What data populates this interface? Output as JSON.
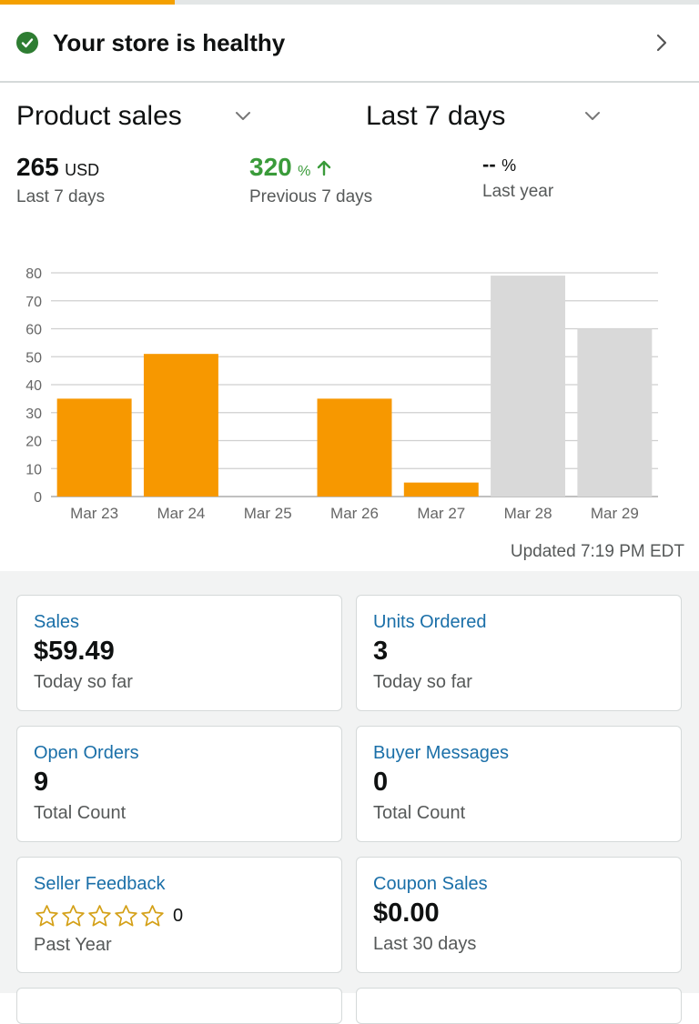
{
  "progress": {
    "fraction": 0.25,
    "color": "#f4a000"
  },
  "health": {
    "title": "Your store is healthy",
    "icon": "check-circle-icon",
    "status_color": "#2e7d32"
  },
  "selectors": {
    "metric": "Product sales",
    "range": "Last 7 days"
  },
  "stats": {
    "current": {
      "value": "265",
      "unit": "USD",
      "label": "Last 7 days"
    },
    "previous": {
      "value": "320",
      "unit": "%",
      "label": "Previous 7 days",
      "color": "#3a9b3a"
    },
    "last_year": {
      "value": "--",
      "unit": "%",
      "label": "Last year"
    }
  },
  "chart_data": {
    "type": "bar",
    "categories": [
      "Mar 23",
      "Mar 24",
      "Mar 25",
      "Mar 26",
      "Mar 27",
      "Mar 28",
      "Mar 29"
    ],
    "values": [
      35,
      51,
      0,
      35,
      5,
      79,
      60
    ],
    "highlight": [
      true,
      true,
      true,
      true,
      true,
      false,
      false
    ],
    "colors": {
      "current": "#f79800",
      "comparison": "#d9d9d9"
    },
    "yticks": [
      0,
      10,
      20,
      30,
      40,
      50,
      60,
      70,
      80
    ],
    "ylim": [
      0,
      80
    ],
    "grid": true
  },
  "updated": "Updated 7:19 PM EDT",
  "cards": [
    {
      "title": "Sales",
      "value": "$59.49",
      "sub": "Today so far"
    },
    {
      "title": "Units Ordered",
      "value": "3",
      "sub": "Today so far"
    },
    {
      "title": "Open Orders",
      "value": "9",
      "sub": "Total Count"
    },
    {
      "title": "Buyer Messages",
      "value": "0",
      "sub": "Total Count"
    },
    {
      "title": "Seller Feedback",
      "rating": 0,
      "rating_max": 5,
      "count": "0",
      "sub": "Past Year"
    },
    {
      "title": "Coupon Sales",
      "value": "$0.00",
      "sub": "Last 30 days"
    }
  ],
  "accent": "#1a6fa8"
}
